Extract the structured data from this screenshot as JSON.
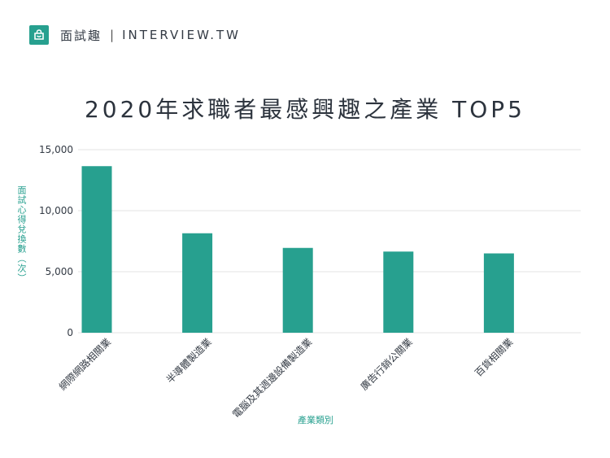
{
  "brand": {
    "logo_icon": "shopping-bag-icon",
    "name": "面試趣",
    "separator": "|",
    "site": "INTERVIEW.TW"
  },
  "colors": {
    "bar": "#27a08f",
    "accent": "#27a08f",
    "grid": "#e3e3e3",
    "text": "#333a44"
  },
  "chart_data": {
    "type": "bar",
    "title": "2020年求職者最感興趣之產業 TOP5",
    "xlabel": "產業類別",
    "ylabel": "面試心得兌換數（次）",
    "categories": [
      "網際網路相關業",
      "半導體製造業",
      "電腦及其週邊設備製造業",
      "廣告行銷公關業",
      "百貨相關業"
    ],
    "values": [
      13650,
      8150,
      6950,
      6650,
      6500
    ],
    "ylim": [
      0,
      15000
    ],
    "yticks": [
      0,
      5000,
      10000,
      15000
    ],
    "ytick_labels": [
      "0",
      "5,000",
      "10,000",
      "15,000"
    ],
    "grid": true,
    "legend": "none"
  }
}
